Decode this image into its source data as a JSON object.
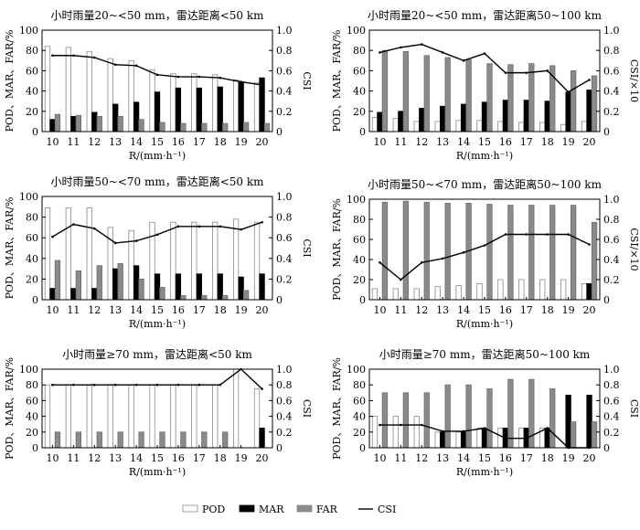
{
  "legend": {
    "items": [
      {
        "key": "pod",
        "label": "POD",
        "color": "#ffffff"
      },
      {
        "key": "mar",
        "label": "MAR",
        "color": "#000000"
      },
      {
        "key": "far",
        "label": "FAR",
        "color": "#8a8a8a"
      },
      {
        "key": "csi",
        "label": "CSI",
        "color": "#000000"
      }
    ]
  },
  "chart_data": [
    {
      "type": "bar",
      "title": "小时雨量20~<50 mm，雷达距离<50 km",
      "xlabel": "R/(mm·h⁻¹)",
      "ylabel_left": "POD、MAR、FAR/%",
      "ylabel_right": "CSI",
      "categories": [
        "10",
        "11",
        "12",
        "13",
        "14",
        "15",
        "16",
        "17",
        "18",
        "19",
        "20"
      ],
      "ylim_left": [
        0,
        100
      ],
      "yticks_left": [
        "0",
        "20",
        "40",
        "60",
        "80",
        "100"
      ],
      "ylim_right": [
        0,
        1.0
      ],
      "yticks_right": [
        "0",
        "0.2",
        "0.4",
        "0.6",
        "0.8",
        "1.0"
      ],
      "series": [
        {
          "name": "POD",
          "values": [
            84,
            83,
            79,
            72,
            70,
            61,
            57,
            57,
            56,
            51,
            48
          ]
        },
        {
          "name": "MAR",
          "values": [
            12,
            15,
            19,
            27,
            29,
            39,
            43,
            43,
            44,
            49,
            53
          ]
        },
        {
          "name": "FAR",
          "values": [
            17,
            16,
            15,
            15,
            12,
            9,
            8,
            8,
            8,
            9,
            8
          ]
        },
        {
          "name": "CSI",
          "axis": "right",
          "values": [
            0.75,
            0.75,
            0.73,
            0.66,
            0.65,
            0.56,
            0.54,
            0.54,
            0.53,
            0.49,
            0.46
          ]
        }
      ]
    },
    {
      "type": "bar",
      "title": "小时雨量20~<50 mm，雷达距离50~100 km",
      "xlabel": "R/(mm·h⁻¹)",
      "ylabel_left": "POD、MAR、FAR/%",
      "ylabel_right": "CSI/×10",
      "categories": [
        "10",
        "11",
        "12",
        "13",
        "14",
        "15",
        "16",
        "17",
        "18",
        "19",
        "20"
      ],
      "ylim_left": [
        0,
        100
      ],
      "yticks_left": [
        "0",
        "20",
        "40",
        "60",
        "80",
        "100"
      ],
      "ylim_right": [
        0,
        1.0
      ],
      "yticks_right": [
        "0",
        "0.2",
        "0.4",
        "0.6",
        "0.8",
        "1.0"
      ],
      "series": [
        {
          "name": "POD",
          "values": [
            14,
            13,
            10,
            10,
            11,
            11,
            10,
            9,
            9,
            7,
            10
          ]
        },
        {
          "name": "MAR",
          "values": [
            19,
            20,
            23,
            25,
            27,
            29,
            31,
            31,
            30,
            39,
            41
          ]
        },
        {
          "name": "FAR",
          "values": [
            80,
            79,
            75,
            73,
            71,
            67,
            66,
            67,
            65,
            60,
            55
          ]
        },
        {
          "name": "CSI",
          "axis": "right",
          "values": [
            0.78,
            0.83,
            0.86,
            0.78,
            0.7,
            0.77,
            0.58,
            0.58,
            0.6,
            0.39,
            0.51
          ]
        }
      ]
    },
    {
      "type": "bar",
      "title": "小时雨量50~<70 mm，雷达距离<50 km",
      "xlabel": "R/(mm·h⁻¹)",
      "ylabel_left": "POD、MAR、FAR/%",
      "ylabel_right": "CSI",
      "categories": [
        "10",
        "11",
        "12",
        "13",
        "14",
        "15",
        "16",
        "17",
        "18",
        "19",
        "20"
      ],
      "ylim_left": [
        0,
        100
      ],
      "yticks_left": [
        "0",
        "20",
        "40",
        "60",
        "80",
        "100"
      ],
      "ylim_right": [
        0,
        1.0
      ],
      "yticks_right": [
        "0",
        "0.2",
        "0.4",
        "0.6",
        "0.8",
        "1.0"
      ],
      "series": [
        {
          "name": "POD",
          "values": [
            89,
            89,
            89,
            70,
            67,
            75,
            75,
            75,
            75,
            78,
            75
          ]
        },
        {
          "name": "MAR",
          "values": [
            11,
            11,
            11,
            30,
            33,
            25,
            25,
            25,
            25,
            22,
            25
          ]
        },
        {
          "name": "FAR",
          "values": [
            38,
            28,
            33,
            35,
            20,
            12,
            4,
            4,
            4,
            9,
            0
          ]
        },
        {
          "name": "CSI",
          "axis": "right",
          "values": [
            0.61,
            0.73,
            0.69,
            0.55,
            0.57,
            0.63,
            0.71,
            0.71,
            0.71,
            0.68,
            0.75
          ]
        }
      ]
    },
    {
      "type": "bar",
      "title": "小时雨量50~<70 mm，雷达距离50~100 km",
      "xlabel": "R/(mm·h⁻¹)",
      "ylabel_left": "POD、MAR、FAR/%",
      "ylabel_right": "CSI/×10",
      "categories": [
        "10",
        "11",
        "12",
        "13",
        "14",
        "15",
        "16",
        "17",
        "18",
        "19",
        "20"
      ],
      "ylim_left": [
        0,
        100
      ],
      "yticks_left": [
        "0",
        "20",
        "40",
        "60",
        "80",
        "100"
      ],
      "ylim_right": [
        0,
        1.0
      ],
      "yticks_right": [
        "0",
        "0.2",
        "0.4",
        "0.6",
        "0.8",
        "1.0"
      ],
      "series": [
        {
          "name": "POD",
          "values": [
            11,
            11,
            11,
            13,
            14,
            16,
            20,
            20,
            20,
            20,
            16
          ]
        },
        {
          "name": "MAR",
          "values": [
            0,
            0,
            0,
            0,
            0,
            0,
            0,
            0,
            0,
            0,
            16
          ]
        },
        {
          "name": "FAR",
          "values": [
            97,
            98,
            97,
            96,
            96,
            95,
            94,
            94,
            94,
            94,
            77
          ]
        },
        {
          "name": "CSI",
          "axis": "right",
          "values": [
            0.37,
            0.2,
            0.37,
            0.41,
            0.47,
            0.54,
            0.65,
            0.65,
            0.65,
            0.65,
            0.55
          ]
        }
      ]
    },
    {
      "type": "bar",
      "title": "小时雨量≥70 mm，雷达距离<50 km",
      "xlabel": "R/(mm·h⁻¹)",
      "ylabel_left": "POD、MAR、FAR/%",
      "ylabel_right": "CSI",
      "categories": [
        "10",
        "11",
        "12",
        "13",
        "14",
        "15",
        "16",
        "17",
        "18",
        "19",
        "20"
      ],
      "ylim_left": [
        0,
        100
      ],
      "yticks_left": [
        "0",
        "20",
        "40",
        "60",
        "80",
        "100"
      ],
      "ylim_right": [
        0,
        1.0
      ],
      "yticks_right": [
        "0",
        "0.2",
        "0.4",
        "0.6",
        "0.8",
        "1.0"
      ],
      "series": [
        {
          "name": "POD",
          "values": [
            80,
            80,
            80,
            80,
            80,
            80,
            80,
            80,
            80,
            100,
            75
          ]
        },
        {
          "name": "MAR",
          "values": [
            0,
            0,
            0,
            0,
            0,
            0,
            0,
            0,
            0,
            0,
            25
          ]
        },
        {
          "name": "FAR",
          "values": [
            20,
            20,
            20,
            20,
            20,
            20,
            20,
            20,
            20,
            0,
            0
          ]
        },
        {
          "name": "CSI",
          "axis": "right",
          "values": [
            0.8,
            0.8,
            0.8,
            0.8,
            0.8,
            0.8,
            0.8,
            0.8,
            0.8,
            1.0,
            0.75
          ]
        }
      ]
    },
    {
      "type": "bar",
      "title": "小时雨量≥70 mm，雷达距离50~100 km",
      "xlabel": "R/(mm·h⁻¹)",
      "ylabel_left": "POD、MAR、FAR/%",
      "ylabel_right": "CSI",
      "categories": [
        "10",
        "11",
        "12",
        "13",
        "14",
        "15",
        "16",
        "17",
        "18",
        "19",
        "20"
      ],
      "ylim_left": [
        0,
        100
      ],
      "yticks_left": [
        "0",
        "20",
        "40",
        "60",
        "80",
        "100"
      ],
      "ylim_right": [
        0,
        1.0
      ],
      "yticks_right": [
        "0",
        "0.2",
        "0.4",
        "0.6",
        "0.8",
        "1.0"
      ],
      "series": [
        {
          "name": "POD",
          "values": [
            40,
            40,
            40,
            20,
            20,
            25,
            25,
            25,
            25,
            0,
            0
          ]
        },
        {
          "name": "MAR",
          "values": [
            0,
            0,
            0,
            20,
            20,
            25,
            25,
            25,
            25,
            67,
            67
          ]
        },
        {
          "name": "FAR",
          "values": [
            70,
            70,
            70,
            80,
            80,
            75,
            87,
            87,
            75,
            33,
            33
          ]
        },
        {
          "name": "CSI",
          "axis": "right",
          "values": [
            0.29,
            0.29,
            0.29,
            0.21,
            0.21,
            0.25,
            0.12,
            0.12,
            0.25,
            0.0,
            0.0
          ]
        }
      ]
    }
  ]
}
